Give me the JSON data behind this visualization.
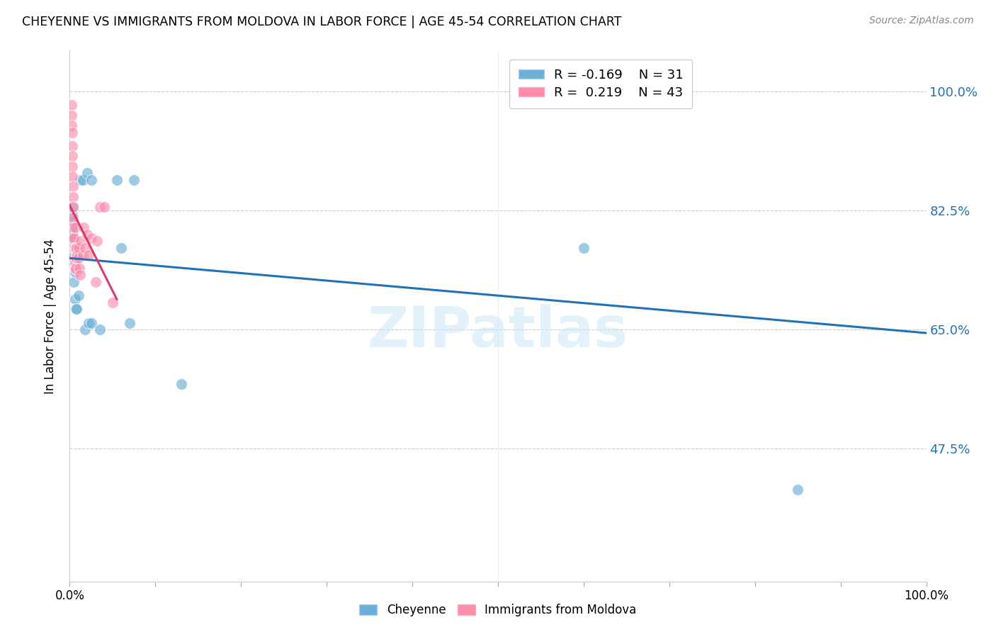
{
  "title": "CHEYENNE VS IMMIGRANTS FROM MOLDOVA IN LABOR FORCE | AGE 45-54 CORRELATION CHART",
  "source": "Source: ZipAtlas.com",
  "ylabel": "In Labor Force | Age 45-54",
  "xlim": [
    0.0,
    1.0
  ],
  "ylim": [
    0.28,
    1.06
  ],
  "yticks": [
    0.475,
    0.65,
    0.825,
    1.0
  ],
  "ytick_labels": [
    "47.5%",
    "65.0%",
    "82.5%",
    "100.0%"
  ],
  "xticks": [
    0.0,
    0.1,
    0.2,
    0.3,
    0.4,
    0.5,
    0.6,
    0.7,
    0.8,
    0.9,
    1.0
  ],
  "xtick_labels": [
    "0.0%",
    "",
    "",
    "",
    "",
    "",
    "",
    "",
    "",
    "",
    "100.0%"
  ],
  "cheyenne_color": "#6baed6",
  "moldova_color": "#fc8eac",
  "blue_line_color": "#2171b5",
  "pink_line_color": "#d63c6b",
  "watermark_text": "ZIPatlas",
  "legend_R_cheyenne": "-0.169",
  "legend_N_cheyenne": "31",
  "legend_R_moldova": "0.219",
  "legend_N_moldova": "43",
  "cheyenne_x": [
    0.003,
    0.003,
    0.003,
    0.004,
    0.004,
    0.004,
    0.004,
    0.005,
    0.005,
    0.005,
    0.006,
    0.006,
    0.007,
    0.008,
    0.008,
    0.01,
    0.012,
    0.015,
    0.018,
    0.02,
    0.022,
    0.025,
    0.025,
    0.035,
    0.055,
    0.06,
    0.07,
    0.075,
    0.13,
    0.6,
    0.85
  ],
  "cheyenne_y": [
    0.78,
    0.8,
    0.82,
    0.76,
    0.79,
    0.81,
    0.83,
    0.72,
    0.75,
    0.77,
    0.695,
    0.735,
    0.68,
    0.68,
    0.76,
    0.7,
    0.87,
    0.87,
    0.65,
    0.88,
    0.66,
    0.66,
    0.87,
    0.65,
    0.87,
    0.77,
    0.66,
    0.87,
    0.57,
    0.77,
    0.415
  ],
  "moldova_x": [
    0.002,
    0.002,
    0.002,
    0.003,
    0.003,
    0.003,
    0.003,
    0.003,
    0.004,
    0.004,
    0.004,
    0.004,
    0.004,
    0.005,
    0.005,
    0.005,
    0.005,
    0.006,
    0.006,
    0.006,
    0.006,
    0.007,
    0.007,
    0.007,
    0.008,
    0.008,
    0.009,
    0.01,
    0.01,
    0.011,
    0.012,
    0.013,
    0.015,
    0.016,
    0.018,
    0.02,
    0.022,
    0.025,
    0.03,
    0.032,
    0.035,
    0.04,
    0.05
  ],
  "moldova_y": [
    0.98,
    0.965,
    0.95,
    0.94,
    0.92,
    0.905,
    0.89,
    0.875,
    0.86,
    0.845,
    0.83,
    0.815,
    0.8,
    0.785,
    0.785,
    0.77,
    0.755,
    0.74,
    0.77,
    0.75,
    0.8,
    0.77,
    0.755,
    0.74,
    0.755,
    0.77,
    0.76,
    0.77,
    0.755,
    0.74,
    0.73,
    0.78,
    0.76,
    0.8,
    0.77,
    0.79,
    0.76,
    0.785,
    0.72,
    0.78,
    0.83,
    0.83,
    0.69
  ],
  "cheyenne_line_x": [
    0.0,
    1.0
  ],
  "cheyenne_line_y": [
    0.755,
    0.645
  ],
  "moldova_line_x_start": 0.0,
  "moldova_line_x_end": 0.055
}
